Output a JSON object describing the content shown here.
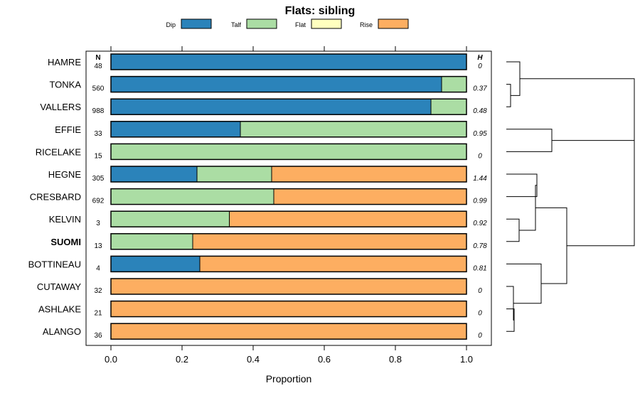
{
  "chart_data": {
    "type": "bar",
    "orientation": "horizontal",
    "stacked": true,
    "title": "Flats: sibling",
    "xlabel": "Proportion",
    "xlim": [
      0,
      1
    ],
    "xticks": [
      "0.0",
      "0.2",
      "0.4",
      "0.6",
      "0.8",
      "1.0"
    ],
    "n_header": "N",
    "h_header": "H",
    "legend": [
      {
        "name": "Dip",
        "color": "#2b83ba"
      },
      {
        "name": "Talf",
        "color": "#abdda4"
      },
      {
        "name": "Flat",
        "color": "#ffffbf"
      },
      {
        "name": "Rise",
        "color": "#fdae61"
      }
    ],
    "rows": [
      {
        "label": "HAMRE",
        "bold": false,
        "n": "48",
        "h": "0",
        "values": [
          1.0,
          0.0,
          0,
          0.0
        ]
      },
      {
        "label": "TONKA",
        "bold": false,
        "n": "560",
        "h": "0.37",
        "values": [
          0.93,
          0.07,
          0,
          0.0
        ]
      },
      {
        "label": "VALLERS",
        "bold": false,
        "n": "988",
        "h": "0.48",
        "values": [
          0.9,
          0.1,
          0,
          0.0
        ]
      },
      {
        "label": "EFFIE",
        "bold": false,
        "n": "33",
        "h": "0.95",
        "values": [
          0.364,
          0.636,
          0,
          0.0
        ]
      },
      {
        "label": "RICELAKE",
        "bold": false,
        "n": "15",
        "h": "0",
        "values": [
          0.0,
          1.0,
          0,
          0.0
        ]
      },
      {
        "label": "HEGNE",
        "bold": false,
        "n": "305",
        "h": "1.44",
        "values": [
          0.242,
          0.21,
          0,
          0.548
        ]
      },
      {
        "label": "CRESBARD",
        "bold": false,
        "n": "692",
        "h": "0.99",
        "values": [
          0.0,
          0.458,
          0,
          0.542
        ]
      },
      {
        "label": "KELVIN",
        "bold": false,
        "n": "3",
        "h": "0.92",
        "values": [
          0.0,
          0.333,
          0,
          0.667
        ]
      },
      {
        "label": "SUOMI",
        "bold": true,
        "n": "13",
        "h": "0.78",
        "values": [
          0.0,
          0.23,
          0,
          0.77
        ]
      },
      {
        "label": "BOTTINEAU",
        "bold": false,
        "n": "4",
        "h": "0.81",
        "values": [
          0.25,
          0.0,
          0,
          0.75
        ]
      },
      {
        "label": "CUTAWAY",
        "bold": false,
        "n": "32",
        "h": "0",
        "values": [
          0.0,
          0.0,
          0,
          1.0
        ]
      },
      {
        "label": "ASHLAKE",
        "bold": false,
        "n": "21",
        "h": "0",
        "values": [
          0.0,
          0.0,
          0,
          1.0
        ]
      },
      {
        "label": "ALANGO",
        "bold": false,
        "n": "36",
        "h": "0",
        "values": [
          0.0,
          0.0,
          0,
          1.0
        ]
      }
    ]
  }
}
